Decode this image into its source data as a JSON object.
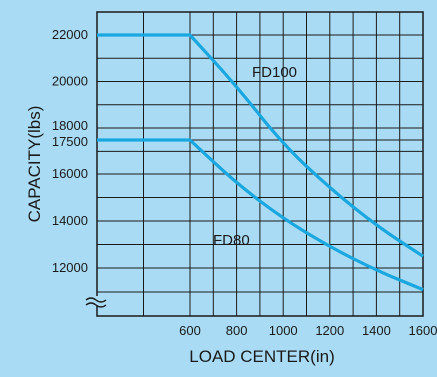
{
  "chart_data": {
    "type": "line",
    "xlabel": "LOAD CENTER(in)",
    "ylabel": "CAPACITY(lbs)",
    "xlim": [
      0,
      1600
    ],
    "ylim": [
      10000,
      23000
    ],
    "x_ticks": [
      "600",
      "800",
      "1000",
      "1200",
      "1400",
      "1600"
    ],
    "y_ticks": [
      "22000",
      "20000",
      "18000",
      "17500",
      "16000",
      "14000",
      "12000"
    ],
    "axis_break": true,
    "grid": true,
    "line_color": "#1aa7e0",
    "series": [
      {
        "name": "FD100",
        "x": [
          0,
          600,
          800,
          1000,
          1200,
          1400,
          1600
        ],
        "y": [
          22000,
          22000,
          19800,
          17300,
          15400,
          13800,
          12500
        ]
      },
      {
        "name": "FD80",
        "x": [
          0,
          600,
          800,
          1000,
          1200,
          1400,
          1600
        ],
        "y": [
          17500,
          17500,
          15600,
          14100,
          12900,
          11900,
          11100
        ]
      }
    ]
  }
}
